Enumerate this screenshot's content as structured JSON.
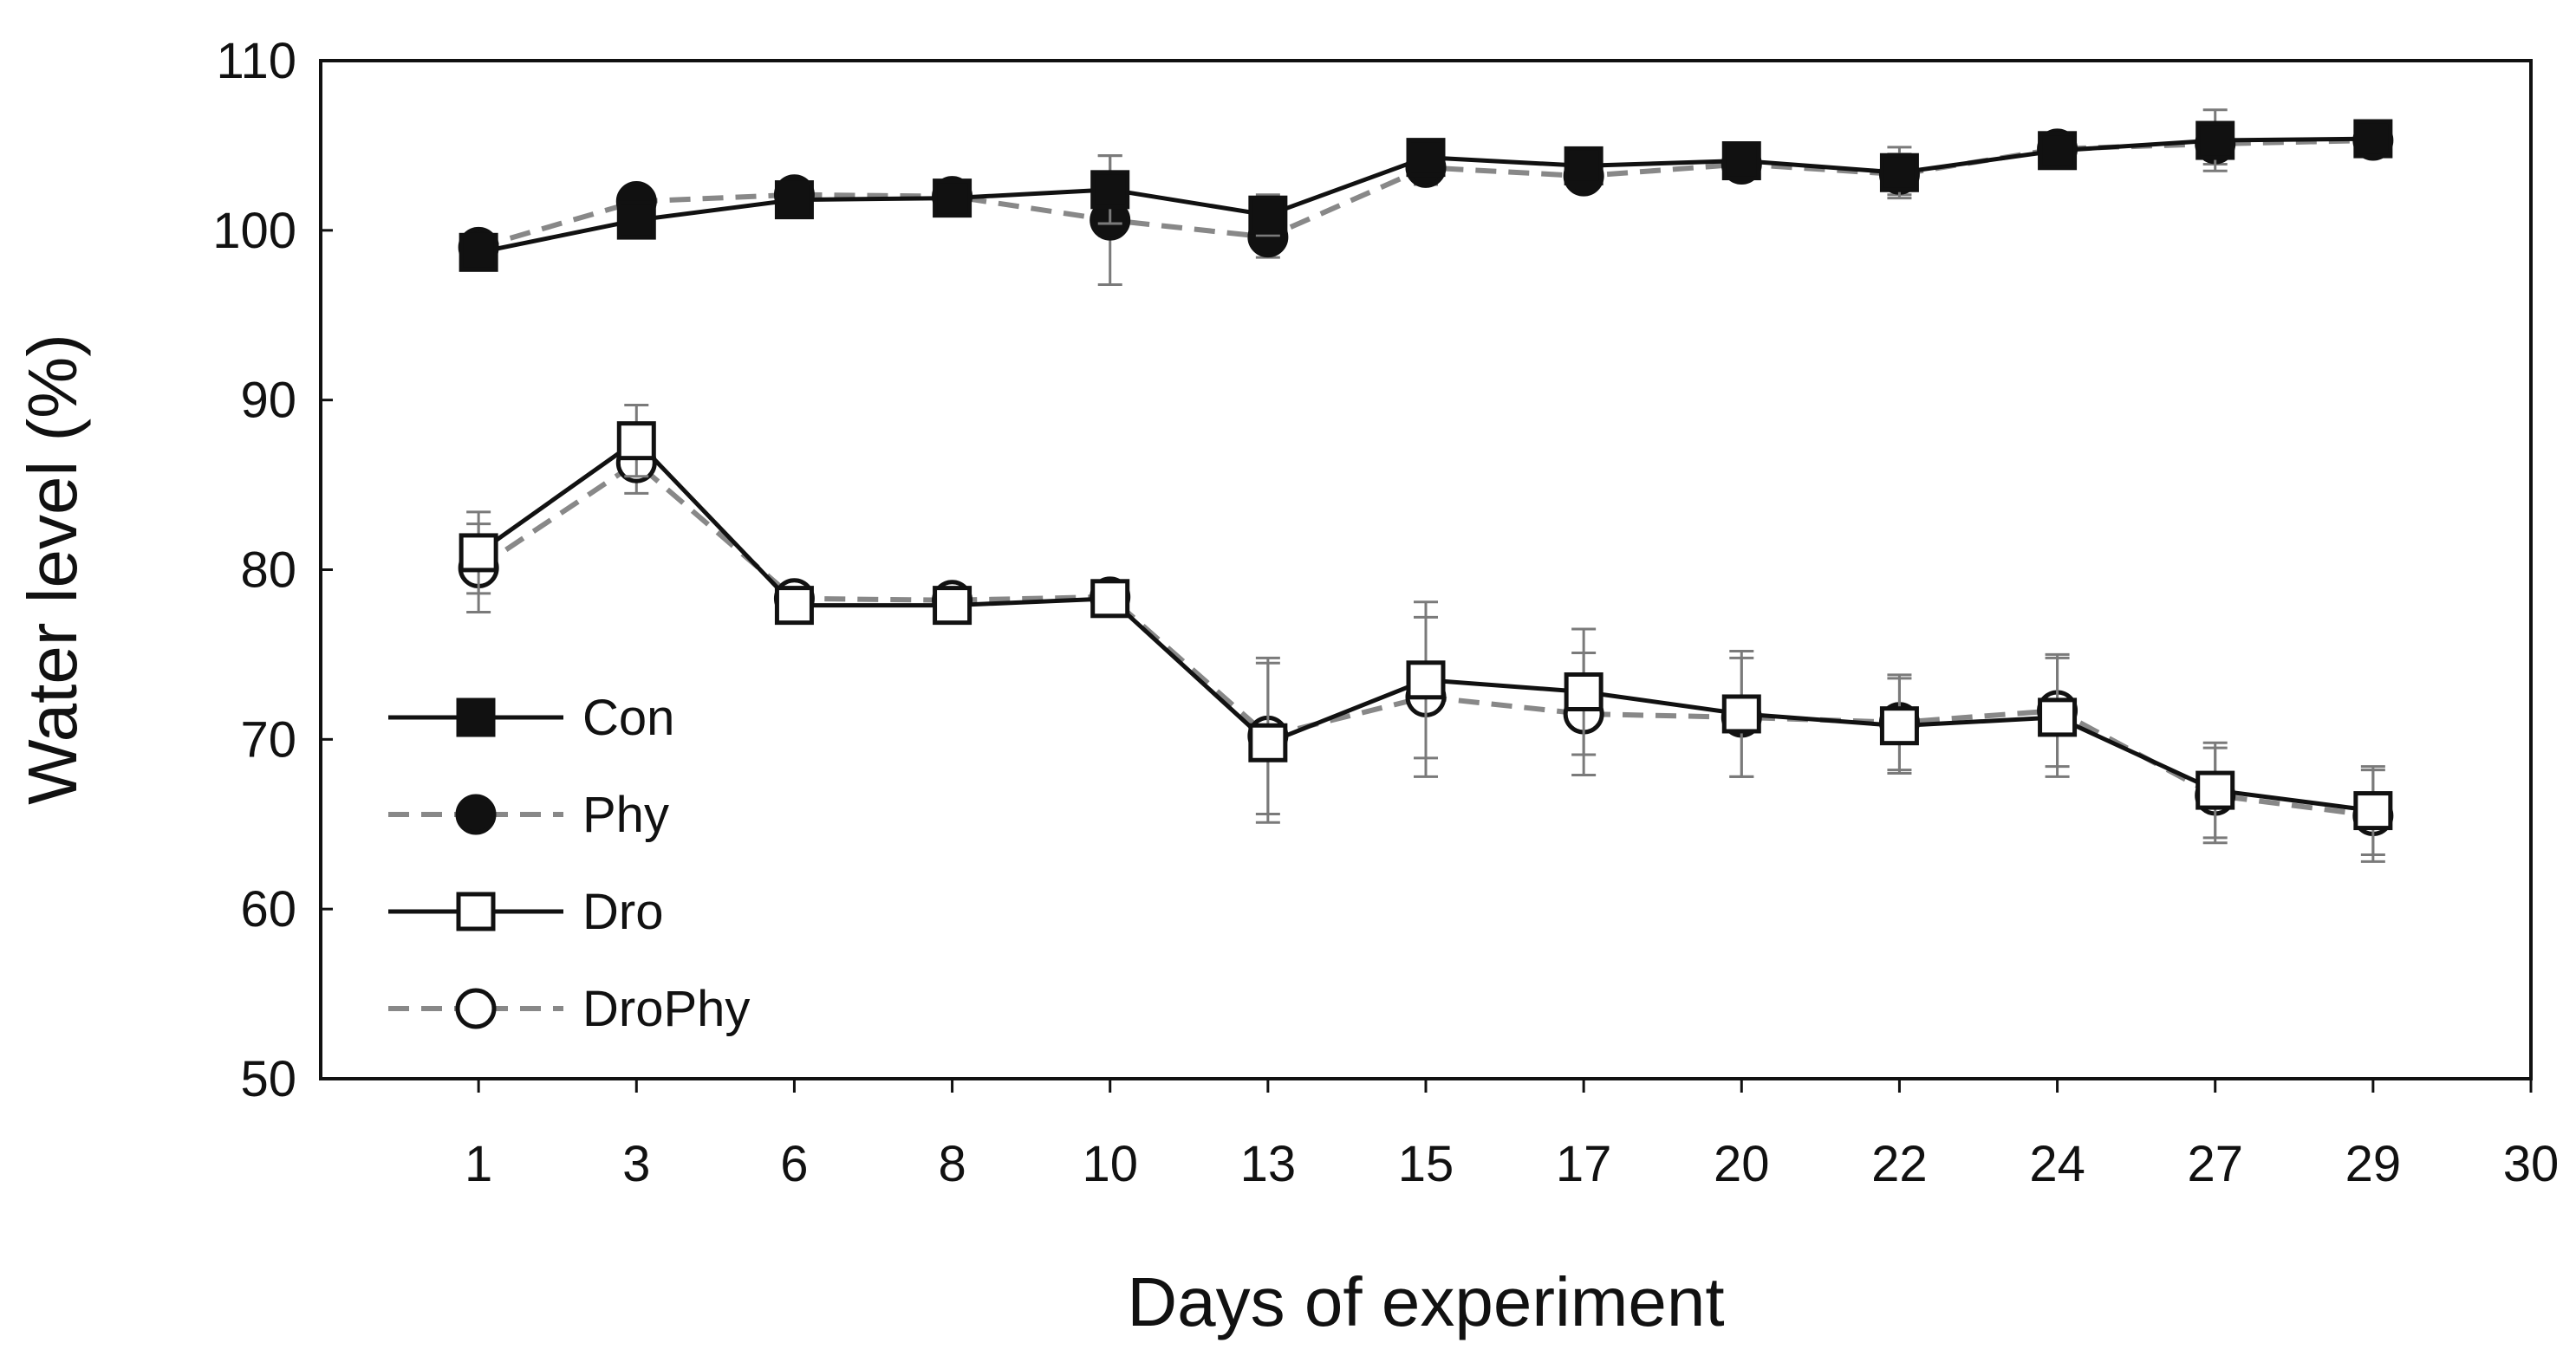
{
  "chart_data": {
    "type": "line",
    "title": "",
    "xlabel": "Days of experiment",
    "ylabel": "Water level (%)",
    "ylim": [
      50,
      110
    ],
    "yticks": [
      50,
      60,
      70,
      80,
      90,
      100,
      110
    ],
    "x_positions": [
      0,
      1,
      2,
      3,
      4,
      5,
      6,
      7,
      8,
      9,
      10,
      11,
      12,
      13
    ],
    "x_tick_labels": [
      "1",
      "3",
      "6",
      "8",
      "10",
      "13",
      "15",
      "17",
      "20",
      "22",
      "24",
      "27",
      "29",
      "30"
    ],
    "days": [
      1,
      3,
      6,
      8,
      10,
      13,
      15,
      17,
      20,
      22,
      24,
      27,
      29
    ],
    "grid": false,
    "legend_position": "left-middle",
    "series": [
      {
        "name": "Con",
        "line": "solid",
        "marker": "square",
        "filled": true,
        "color": "#111111",
        "values": [
          98.7,
          100.6,
          101.8,
          101.9,
          102.4,
          100.9,
          104.3,
          103.8,
          104.1,
          103.4,
          104.7,
          105.3,
          105.4
        ],
        "errors": [
          0.6,
          0.8,
          0.6,
          0.5,
          2.0,
          1.2,
          1.0,
          0.8,
          0.8,
          1.5,
          0.8,
          1.8,
          0.8
        ]
      },
      {
        "name": "Phy",
        "line": "dashed",
        "marker": "circle",
        "filled": true,
        "color": "#888888",
        "values": [
          99.0,
          101.7,
          102.1,
          102.0,
          100.6,
          99.6,
          103.7,
          103.2,
          103.9,
          103.3,
          104.8,
          105.1,
          105.3
        ],
        "errors": [
          0.6,
          0.7,
          0.6,
          0.6,
          3.8,
          1.2,
          1.0,
          0.6,
          0.6,
          1.2,
          0.8,
          1.2,
          0.8
        ]
      },
      {
        "name": "Dro",
        "line": "solid",
        "marker": "square",
        "filled": false,
        "color": "#111111",
        "values": [
          81.0,
          87.6,
          77.9,
          77.9,
          78.3,
          69.8,
          73.5,
          72.8,
          71.5,
          70.8,
          71.3,
          67.0,
          65.8
        ],
        "errors": [
          2.4,
          2.1,
          0.6,
          0.6,
          0.6,
          4.7,
          4.6,
          3.7,
          3.7,
          2.8,
          3.5,
          2.8,
          2.6
        ]
      },
      {
        "name": "DroPhy",
        "line": "dashed",
        "marker": "circle",
        "filled": false,
        "color": "#888888",
        "values": [
          80.1,
          86.3,
          78.3,
          78.2,
          78.4,
          70.2,
          72.5,
          71.5,
          71.3,
          71.0,
          71.7,
          66.7,
          65.5
        ],
        "errors": [
          2.6,
          1.8,
          0.6,
          0.6,
          0.6,
          4.6,
          4.7,
          3.6,
          3.5,
          2.8,
          3.3,
          2.8,
          2.7
        ]
      }
    ]
  }
}
